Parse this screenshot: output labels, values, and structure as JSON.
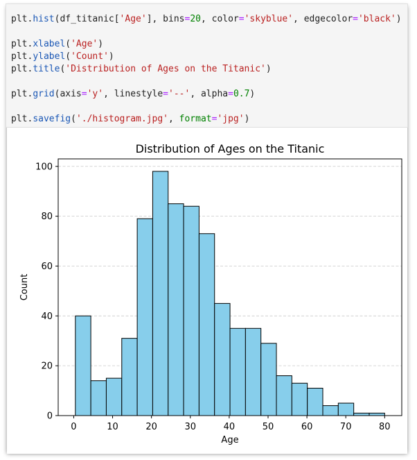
{
  "code_cell": {
    "lines": [
      [
        {
          "t": "plt",
          "c": "var"
        },
        {
          "t": ".",
          "c": "p"
        },
        {
          "t": "hist",
          "c": "fn"
        },
        {
          "t": "(df_titanic[",
          "c": "p"
        },
        {
          "t": "'Age'",
          "c": "str"
        },
        {
          "t": "], bins",
          "c": "p"
        },
        {
          "t": "=",
          "c": "op"
        },
        {
          "t": "20",
          "c": "num"
        },
        {
          "t": ", color",
          "c": "p"
        },
        {
          "t": "=",
          "c": "op"
        },
        {
          "t": "'skyblue'",
          "c": "str"
        },
        {
          "t": ", edgecolor",
          "c": "p"
        },
        {
          "t": "=",
          "c": "op"
        },
        {
          "t": "'black'",
          "c": "str"
        },
        {
          "t": ")",
          "c": "p"
        }
      ],
      [],
      [
        {
          "t": "plt",
          "c": "var"
        },
        {
          "t": ".",
          "c": "p"
        },
        {
          "t": "xlabel",
          "c": "fn"
        },
        {
          "t": "(",
          "c": "p"
        },
        {
          "t": "'Age'",
          "c": "str"
        },
        {
          "t": ")",
          "c": "p"
        }
      ],
      [
        {
          "t": "plt",
          "c": "var"
        },
        {
          "t": ".",
          "c": "p"
        },
        {
          "t": "ylabel",
          "c": "fn"
        },
        {
          "t": "(",
          "c": "p"
        },
        {
          "t": "'Count'",
          "c": "str"
        },
        {
          "t": ")",
          "c": "p"
        }
      ],
      [
        {
          "t": "plt",
          "c": "var"
        },
        {
          "t": ".",
          "c": "p"
        },
        {
          "t": "title",
          "c": "fn"
        },
        {
          "t": "(",
          "c": "p"
        },
        {
          "t": "'Distribution of Ages on the Titanic'",
          "c": "str"
        },
        {
          "t": ")",
          "c": "p"
        }
      ],
      [],
      [
        {
          "t": "plt",
          "c": "var"
        },
        {
          "t": ".",
          "c": "p"
        },
        {
          "t": "grid",
          "c": "fn"
        },
        {
          "t": "(axis",
          "c": "p"
        },
        {
          "t": "=",
          "c": "op"
        },
        {
          "t": "'y'",
          "c": "str"
        },
        {
          "t": ", linestyle",
          "c": "p"
        },
        {
          "t": "=",
          "c": "op"
        },
        {
          "t": "'--'",
          "c": "str"
        },
        {
          "t": ", alpha",
          "c": "p"
        },
        {
          "t": "=",
          "c": "op"
        },
        {
          "t": "0.7",
          "c": "num"
        },
        {
          "t": ")",
          "c": "p"
        }
      ],
      [],
      [
        {
          "t": "plt",
          "c": "var"
        },
        {
          "t": ".",
          "c": "p"
        },
        {
          "t": "savefig",
          "c": "fn"
        },
        {
          "t": "(",
          "c": "p"
        },
        {
          "t": "'./histogram.jpg'",
          "c": "str"
        },
        {
          "t": ", ",
          "c": "p"
        },
        {
          "t": "format",
          "c": "kw2"
        },
        {
          "t": "=",
          "c": "op"
        },
        {
          "t": "'jpg'",
          "c": "str"
        },
        {
          "t": ")",
          "c": "p"
        }
      ]
    ]
  },
  "colors": {
    "bar_fill": "#87ceeb",
    "bar_edge": "#000000",
    "grid": "#b0b0b0",
    "axis": "#000000",
    "text": "#000000"
  },
  "chart_data": {
    "type": "bar",
    "title": "Distribution of Ages on the Titanic",
    "xlabel": "Age",
    "ylabel": "Count",
    "bin_edges": [
      0.42,
      4.399,
      8.378,
      12.357,
      16.336,
      20.315,
      24.294,
      28.273,
      32.252,
      36.231,
      40.21,
      44.189,
      48.168,
      52.147,
      56.126,
      60.105,
      64.084,
      68.063,
      72.042,
      76.021,
      80.0
    ],
    "values": [
      40,
      14,
      15,
      31,
      79,
      98,
      85,
      84,
      73,
      45,
      35,
      35,
      29,
      16,
      13,
      11,
      4,
      5,
      1,
      1
    ],
    "xlim": [
      -4.0,
      84.4
    ],
    "ylim": [
      0,
      103
    ],
    "xticks": [
      0,
      10,
      20,
      30,
      40,
      50,
      60,
      70,
      80
    ],
    "yticks": [
      0,
      20,
      40,
      60,
      80,
      100
    ],
    "grid": "y-dashed",
    "legend": "none"
  }
}
